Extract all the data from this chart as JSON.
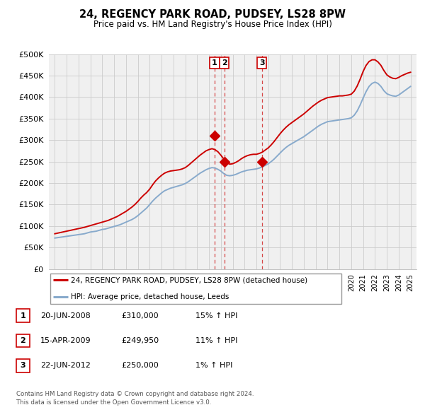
{
  "title": "24, REGENCY PARK ROAD, PUDSEY, LS28 8PW",
  "subtitle": "Price paid vs. HM Land Registry's House Price Index (HPI)",
  "legend_label_red": "24, REGENCY PARK ROAD, PUDSEY, LS28 8PW (detached house)",
  "legend_label_blue": "HPI: Average price, detached house, Leeds",
  "transactions": [
    {
      "label": "1",
      "date": "20-JUN-2008",
      "price": "£310,000",
      "hpi": "15% ↑ HPI",
      "year": 2008.47
    },
    {
      "label": "2",
      "date": "15-APR-2009",
      "price": "£249,950",
      "hpi": "11% ↑ HPI",
      "year": 2009.29
    },
    {
      "label": "3",
      "date": "22-JUN-2012",
      "price": "£250,000",
      "hpi": "1% ↑ HPI",
      "year": 2012.47
    }
  ],
  "transaction_values": [
    310000,
    249950,
    250000
  ],
  "footer": "Contains HM Land Registry data © Crown copyright and database right 2024.\nThis data is licensed under the Open Government Licence v3.0.",
  "hpi_years": [
    1995.0,
    1995.25,
    1995.5,
    1995.75,
    1996.0,
    1996.25,
    1996.5,
    1996.75,
    1997.0,
    1997.25,
    1997.5,
    1997.75,
    1998.0,
    1998.25,
    1998.5,
    1998.75,
    1999.0,
    1999.25,
    1999.5,
    1999.75,
    2000.0,
    2000.25,
    2000.5,
    2000.75,
    2001.0,
    2001.25,
    2001.5,
    2001.75,
    2002.0,
    2002.25,
    2002.5,
    2002.75,
    2003.0,
    2003.25,
    2003.5,
    2003.75,
    2004.0,
    2004.25,
    2004.5,
    2004.75,
    2005.0,
    2005.25,
    2005.5,
    2005.75,
    2006.0,
    2006.25,
    2006.5,
    2006.75,
    2007.0,
    2007.25,
    2007.5,
    2007.75,
    2008.0,
    2008.25,
    2008.5,
    2008.75,
    2009.0,
    2009.25,
    2009.5,
    2009.75,
    2010.0,
    2010.25,
    2010.5,
    2010.75,
    2011.0,
    2011.25,
    2011.5,
    2011.75,
    2012.0,
    2012.25,
    2012.5,
    2012.75,
    2013.0,
    2013.25,
    2013.5,
    2013.75,
    2014.0,
    2014.25,
    2014.5,
    2014.75,
    2015.0,
    2015.25,
    2015.5,
    2015.75,
    2016.0,
    2016.25,
    2016.5,
    2016.75,
    2017.0,
    2017.25,
    2017.5,
    2017.75,
    2018.0,
    2018.25,
    2018.5,
    2018.75,
    2019.0,
    2019.25,
    2019.5,
    2019.75,
    2020.0,
    2020.25,
    2020.5,
    2020.75,
    2021.0,
    2021.25,
    2021.5,
    2021.75,
    2022.0,
    2022.25,
    2022.5,
    2022.75,
    2023.0,
    2023.25,
    2023.5,
    2023.75,
    2024.0,
    2024.25,
    2024.5,
    2024.75,
    2025.0
  ],
  "hpi_values": [
    72000,
    73000,
    74000,
    75000,
    76000,
    77000,
    78000,
    79000,
    80000,
    81000,
    82000,
    84000,
    86000,
    87000,
    88000,
    90000,
    92000,
    93000,
    95000,
    97000,
    99000,
    101000,
    103000,
    106000,
    109000,
    112000,
    115000,
    119000,
    124000,
    130000,
    136000,
    142000,
    150000,
    158000,
    165000,
    171000,
    177000,
    182000,
    185000,
    188000,
    190000,
    192000,
    194000,
    196000,
    199000,
    203000,
    208000,
    213000,
    218000,
    223000,
    227000,
    231000,
    234000,
    236000,
    235000,
    232000,
    228000,
    222000,
    218000,
    217000,
    218000,
    220000,
    223000,
    226000,
    228000,
    230000,
    231000,
    232000,
    233000,
    235000,
    238000,
    241000,
    245000,
    250000,
    256000,
    263000,
    270000,
    277000,
    283000,
    288000,
    292000,
    296000,
    300000,
    304000,
    308000,
    313000,
    318000,
    323000,
    328000,
    333000,
    337000,
    340000,
    343000,
    344000,
    345000,
    346000,
    347000,
    348000,
    349000,
    350000,
    352000,
    358000,
    368000,
    382000,
    398000,
    413000,
    425000,
    432000,
    435000,
    432000,
    425000,
    415000,
    408000,
    405000,
    403000,
    402000,
    405000,
    410000,
    415000,
    420000,
    425000
  ],
  "red_years": [
    1995.0,
    1995.25,
    1995.5,
    1995.75,
    1996.0,
    1996.25,
    1996.5,
    1996.75,
    1997.0,
    1997.25,
    1997.5,
    1997.75,
    1998.0,
    1998.25,
    1998.5,
    1998.75,
    1999.0,
    1999.25,
    1999.5,
    1999.75,
    2000.0,
    2000.25,
    2000.5,
    2000.75,
    2001.0,
    2001.25,
    2001.5,
    2001.75,
    2002.0,
    2002.25,
    2002.5,
    2002.75,
    2003.0,
    2003.25,
    2003.5,
    2003.75,
    2004.0,
    2004.25,
    2004.5,
    2004.75,
    2005.0,
    2005.25,
    2005.5,
    2005.75,
    2006.0,
    2006.25,
    2006.5,
    2006.75,
    2007.0,
    2007.25,
    2007.5,
    2007.75,
    2008.0,
    2008.25,
    2008.5,
    2008.75,
    2009.0,
    2009.25,
    2009.5,
    2009.75,
    2010.0,
    2010.25,
    2010.5,
    2010.75,
    2011.0,
    2011.25,
    2011.5,
    2011.75,
    2012.0,
    2012.25,
    2012.5,
    2012.75,
    2013.0,
    2013.25,
    2013.5,
    2013.75,
    2014.0,
    2014.25,
    2014.5,
    2014.75,
    2015.0,
    2015.25,
    2015.5,
    2015.75,
    2016.0,
    2016.25,
    2016.5,
    2016.75,
    2017.0,
    2017.25,
    2017.5,
    2017.75,
    2018.0,
    2018.25,
    2018.5,
    2018.75,
    2019.0,
    2019.25,
    2019.5,
    2019.75,
    2020.0,
    2020.25,
    2020.5,
    2020.75,
    2021.0,
    2021.25,
    2021.5,
    2021.75,
    2022.0,
    2022.25,
    2022.5,
    2022.75,
    2023.0,
    2023.25,
    2023.5,
    2023.75,
    2024.0,
    2024.25,
    2024.5,
    2024.75,
    2025.0
  ],
  "red_values": [
    82000,
    83500,
    85000,
    86500,
    88000,
    89500,
    91000,
    92500,
    94000,
    95500,
    97000,
    99000,
    101000,
    103000,
    105000,
    107000,
    109000,
    111000,
    113000,
    116000,
    119000,
    122000,
    126000,
    130000,
    134000,
    139000,
    144000,
    150000,
    157000,
    165000,
    172000,
    178000,
    186000,
    196000,
    205000,
    212000,
    218000,
    223000,
    226000,
    228000,
    229000,
    230000,
    231000,
    233000,
    236000,
    241000,
    247000,
    253000,
    259000,
    265000,
    270000,
    275000,
    278000,
    280000,
    278000,
    273000,
    265000,
    256000,
    248000,
    244000,
    245000,
    248000,
    252000,
    257000,
    261000,
    264000,
    266000,
    267000,
    267000,
    269000,
    272000,
    277000,
    282000,
    289000,
    297000,
    306000,
    315000,
    323000,
    330000,
    336000,
    341000,
    346000,
    351000,
    356000,
    361000,
    367000,
    373000,
    379000,
    384000,
    389000,
    393000,
    396000,
    399000,
    400000,
    401000,
    402000,
    403000,
    403000,
    404000,
    405000,
    407000,
    414000,
    426000,
    442000,
    460000,
    474000,
    483000,
    487000,
    487000,
    482000,
    474000,
    462000,
    452000,
    447000,
    444000,
    443000,
    446000,
    450000,
    453000,
    456000,
    458000
  ],
  "color_red": "#cc0000",
  "color_blue": "#88aacc",
  "color_grid": "#cccccc",
  "color_bg": "#f0f0f0",
  "ylim": [
    0,
    500000
  ],
  "yticks": [
    0,
    50000,
    100000,
    150000,
    200000,
    250000,
    300000,
    350000,
    400000,
    450000,
    500000
  ],
  "xlim": [
    1994.5,
    2025.5
  ]
}
